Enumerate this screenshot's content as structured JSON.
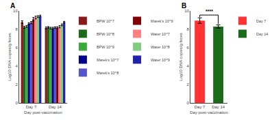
{
  "chart_data": [
    {
      "type": "bar",
      "title": "A",
      "xlabel": "Day post-vaccination",
      "ylabel": "Log10 DNA copies/g feces",
      "categories": [
        "Day 7",
        "Day 14"
      ],
      "series": [
        {
          "name": "BPW 10^7",
          "color": "#8B1A1A",
          "values": [
            8.78,
            8.15
          ],
          "errors": [
            0.15,
            0.1
          ]
        },
        {
          "name": "BPW 10^8",
          "color": "#1A6B1A",
          "values": [
            8.22,
            8.22
          ],
          "errors": [
            0.12,
            0.08
          ]
        },
        {
          "name": "BPW 10^9",
          "color": "#3AAA3A",
          "values": [
            8.32,
            8.12
          ],
          "errors": [
            0.1,
            0.1
          ]
        },
        {
          "name": "Marek's 10^7",
          "color": "#00008B",
          "values": [
            8.62,
            8.12
          ],
          "errors": [
            0.1,
            0.1
          ]
        },
        {
          "name": "Marek's 10^8",
          "color": "#5555CC",
          "values": [
            8.72,
            8.18
          ],
          "errors": [
            0.12,
            0.08
          ]
        },
        {
          "name": "Marek's 10^9",
          "color": "#800000",
          "values": [
            9.08,
            8.18
          ],
          "errors": [
            0.2,
            0.1
          ]
        },
        {
          "name": "Water 10^7",
          "color": "#FF8080",
          "values": [
            9.28,
            8.28
          ],
          "errors": [
            0.15,
            0.12
          ]
        },
        {
          "name": "Water 10^8",
          "color": "#80CC80",
          "values": [
            9.38,
            8.48
          ],
          "errors": [
            0.1,
            0.1
          ]
        },
        {
          "name": "Water 10^9",
          "color": "#2222AA",
          "values": [
            9.44,
            8.78
          ],
          "errors": [
            0.1,
            0.08
          ]
        }
      ],
      "ylim": [
        0,
        10
      ],
      "yticks": [
        0,
        2,
        4,
        6,
        8,
        10
      ],
      "grid": false,
      "legend": "right"
    },
    {
      "type": "bar",
      "title": "B",
      "xlabel": "Day post-vaccination",
      "ylabel": "Log10 DNA copies/g feces",
      "categories": [
        "Day 7",
        "Day 14"
      ],
      "series": [
        {
          "name": "Day 7",
          "color": "#FF3333",
          "values": [
            8.95,
            null
          ],
          "errors": [
            0.3,
            null
          ]
        },
        {
          "name": "Day 14",
          "color": "#1A6B1A",
          "values": [
            null,
            8.3
          ],
          "errors": [
            null,
            0.18
          ]
        }
      ],
      "annotations": [
        "****"
      ],
      "ylim": [
        0,
        10
      ],
      "yticks": [
        0,
        2,
        4,
        6,
        8,
        10
      ],
      "grid": false,
      "legend": "right"
    }
  ]
}
